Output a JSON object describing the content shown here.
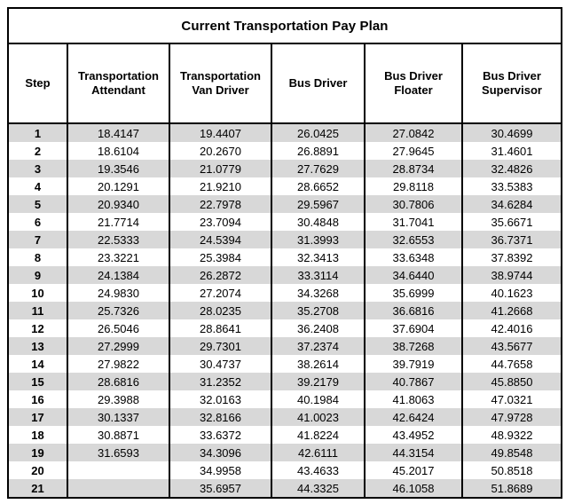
{
  "title": "Current Transportation Pay Plan",
  "table": {
    "columns": [
      "Step",
      "Transportation Attendant",
      "Transportation Van Driver",
      "Bus Driver",
      "Bus Driver Floater",
      "Bus Driver Supervisor"
    ],
    "rows": [
      [
        "1",
        "18.4147",
        "19.4407",
        "26.0425",
        "27.0842",
        "30.4699"
      ],
      [
        "2",
        "18.6104",
        "20.2670",
        "26.8891",
        "27.9645",
        "31.4601"
      ],
      [
        "3",
        "19.3546",
        "21.0779",
        "27.7629",
        "28.8734",
        "32.4826"
      ],
      [
        "4",
        "20.1291",
        "21.9210",
        "28.6652",
        "29.8118",
        "33.5383"
      ],
      [
        "5",
        "20.9340",
        "22.7978",
        "29.5967",
        "30.7806",
        "34.6284"
      ],
      [
        "6",
        "21.7714",
        "23.7094",
        "30.4848",
        "31.7041",
        "35.6671"
      ],
      [
        "7",
        "22.5333",
        "24.5394",
        "31.3993",
        "32.6553",
        "36.7371"
      ],
      [
        "8",
        "23.3221",
        "25.3984",
        "32.3413",
        "33.6348",
        "37.8392"
      ],
      [
        "9",
        "24.1384",
        "26.2872",
        "33.3114",
        "34.6440",
        "38.9744"
      ],
      [
        "10",
        "24.9830",
        "27.2074",
        "34.3268",
        "35.6999",
        "40.1623"
      ],
      [
        "11",
        "25.7326",
        "28.0235",
        "35.2708",
        "36.6816",
        "41.2668"
      ],
      [
        "12",
        "26.5046",
        "28.8641",
        "36.2408",
        "37.6904",
        "42.4016"
      ],
      [
        "13",
        "27.2999",
        "29.7301",
        "37.2374",
        "38.7268",
        "43.5677"
      ],
      [
        "14",
        "27.9822",
        "30.4737",
        "38.2614",
        "39.7919",
        "44.7658"
      ],
      [
        "15",
        "28.6816",
        "31.2352",
        "39.2179",
        "40.7867",
        "45.8850"
      ],
      [
        "16",
        "29.3988",
        "32.0163",
        "40.1984",
        "41.8063",
        "47.0321"
      ],
      [
        "17",
        "30.1337",
        "32.8166",
        "41.0023",
        "42.6424",
        "47.9728"
      ],
      [
        "18",
        "30.8871",
        "33.6372",
        "41.8224",
        "43.4952",
        "48.9322"
      ],
      [
        "19",
        "31.6593",
        "34.3096",
        "42.6111",
        "44.3154",
        "49.8548"
      ],
      [
        "20",
        "",
        "34.9958",
        "43.4633",
        "45.2017",
        "50.8518"
      ],
      [
        "21",
        "",
        "35.6957",
        "44.3325",
        "46.1058",
        "51.8689"
      ]
    ]
  },
  "colors": {
    "stripe": "#d8d8d8",
    "border": "#000000",
    "background": "#ffffff"
  }
}
